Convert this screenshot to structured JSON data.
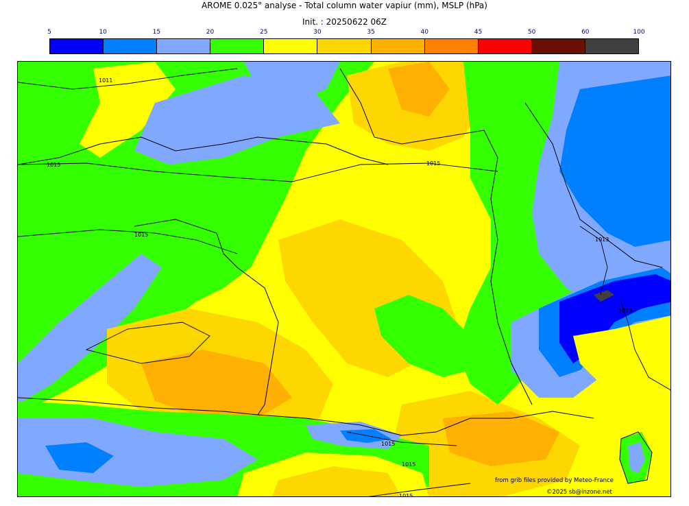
{
  "title": "AROME 0.025° analyse - Total column water vapiur (mm), MSLP (hPa)",
  "subtitle": "Init. : 20250622 06Z",
  "legend": {
    "ticks": [
      "5",
      "10",
      "15",
      "20",
      "25",
      "30",
      "35",
      "40",
      "45",
      "50",
      "60",
      "100"
    ],
    "colors": [
      "#0000ff",
      "#0080ff",
      "#80a8ff",
      "#33ff00",
      "#ffff00",
      "#ffd700",
      "#ffb000",
      "#ff8000",
      "#ff0000",
      "#6b0f00",
      "#404040"
    ]
  },
  "isobars": [
    "1011",
    "1015",
    "1015",
    "1015",
    "1013",
    "1013",
    "1015",
    "1015",
    "1015"
  ],
  "credits": {
    "line1": "from grib files provided by Meteo-France",
    "line2": "©2025 sb@inzone.net"
  }
}
